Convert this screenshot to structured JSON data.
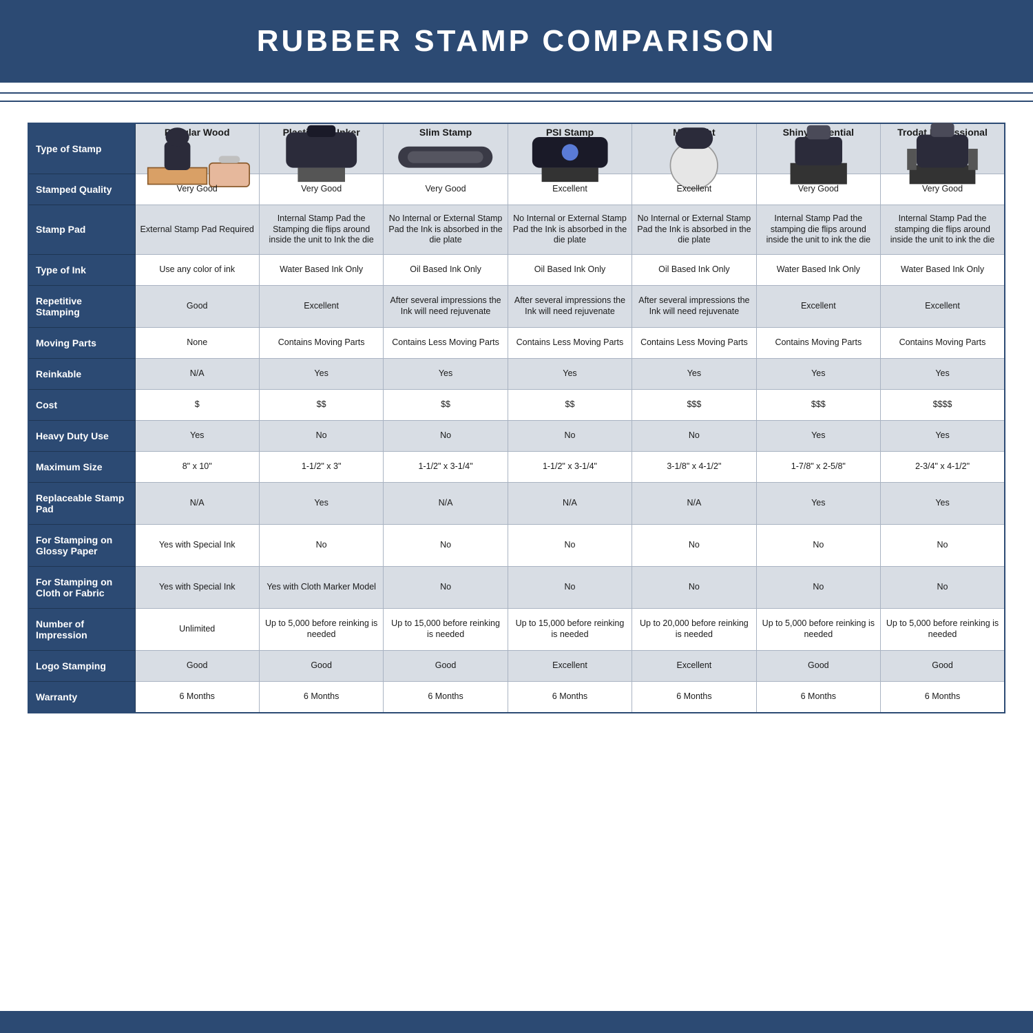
{
  "title": "RUBBER STAMP COMPARISON",
  "colors": {
    "brand": "#2c4a73",
    "alt_row": "#d8dde4",
    "border": "#a9b3c2",
    "text": "#1a1a1a",
    "white": "#ffffff"
  },
  "columns": [
    {
      "label": "Regular Wood",
      "icon": "wood-stamp"
    },
    {
      "label": "Plastic Self Inker",
      "icon": "self-inker"
    },
    {
      "label": "Slim Stamp",
      "icon": "slim-stamp"
    },
    {
      "label": "PSI Stamp",
      "icon": "psi-stamp"
    },
    {
      "label": "MaxLight",
      "icon": "maxlight"
    },
    {
      "label": "Shiny Essential",
      "icon": "shiny"
    },
    {
      "label": "Trodat Professional",
      "icon": "trodat"
    }
  ],
  "row_headers": [
    "Type of Stamp",
    "Stamped Quality",
    "Stamp Pad",
    "Type of Ink",
    "Repetitive Stamping",
    "Moving Parts",
    "Reinkable",
    "Cost",
    "Heavy Duty Use",
    "Maximum Size",
    "Replaceable Stamp Pad",
    "For Stamping on Glossy Paper",
    "For Stamping on Cloth or Fabric",
    "Number of Impression",
    "Logo Stamping",
    "Warranty"
  ],
  "rows": [
    [
      "Very Good",
      "Very Good",
      "Very Good",
      "Excellent",
      "Excellent",
      "Very Good",
      "Very Good"
    ],
    [
      "External Stamp Pad Required",
      "Internal Stamp Pad the Stamping die flips around inside the unit to Ink the die",
      "No Internal or External Stamp Pad the Ink is absorbed in the die plate",
      "No Internal or External Stamp Pad the Ink is absorbed in the die plate",
      "No Internal or External Stamp Pad the Ink is absorbed in the die plate",
      "Internal Stamp Pad the stamping die flips around inside the unit to ink the die",
      "Internal Stamp Pad the stamping die flips around inside the unit to ink the die"
    ],
    [
      "Use any color of ink",
      "Water Based Ink Only",
      "Oil Based Ink Only",
      "Oil Based Ink Only",
      "Oil Based Ink Only",
      "Water Based Ink Only",
      "Water Based Ink Only"
    ],
    [
      "Good",
      "Excellent",
      "After several impressions the Ink will need rejuvenate",
      "After several impressions the Ink will need rejuvenate",
      "After several impressions the Ink will need rejuvenate",
      "Excellent",
      "Excellent"
    ],
    [
      "None",
      "Contains Moving Parts",
      "Contains Less Moving Parts",
      "Contains Less Moving Parts",
      "Contains Less Moving Parts",
      "Contains Moving Parts",
      "Contains Moving Parts"
    ],
    [
      "N/A",
      "Yes",
      "Yes",
      "Yes",
      "Yes",
      "Yes",
      "Yes"
    ],
    [
      "$",
      "$$",
      "$$",
      "$$",
      "$$$",
      "$$$",
      "$$$$"
    ],
    [
      "Yes",
      "No",
      "No",
      "No",
      "No",
      "Yes",
      "Yes"
    ],
    [
      "8\" x 10\"",
      "1-1/2\" x 3\"",
      "1-1/2\" x 3-1/4\"",
      "1-1/2\" x 3-1/4\"",
      "3-1/8\" x 4-1/2\"",
      "1-7/8\" x 2-5/8\"",
      "2-3/4\" x 4-1/2\""
    ],
    [
      "N/A",
      "Yes",
      "N/A",
      "N/A",
      "N/A",
      "Yes",
      "Yes"
    ],
    [
      "Yes with Special Ink",
      "No",
      "No",
      "No",
      "No",
      "No",
      "No"
    ],
    [
      "Yes with Special Ink",
      "Yes with Cloth Marker Model",
      "No",
      "No",
      "No",
      "No",
      "No"
    ],
    [
      "Unlimited",
      "Up to 5,000 before reinking is needed",
      "Up to 15,000 before reinking is needed",
      "Up to 15,000 before reinking is needed",
      "Up to 20,000 before reinking is needed",
      "Up to 5,000 before reinking is needed",
      "Up to 5,000 before reinking is needed"
    ],
    [
      "Good",
      "Good",
      "Good",
      "Excellent",
      "Excellent",
      "Good",
      "Good"
    ],
    [
      "6 Months",
      "6 Months",
      "6 Months",
      "6 Months",
      "6 Months",
      "6 Months",
      "6 Months"
    ]
  ],
  "alt_rows": [
    false,
    true,
    false,
    true,
    false,
    true,
    false,
    true,
    false,
    true,
    false,
    true,
    false,
    true,
    false
  ]
}
